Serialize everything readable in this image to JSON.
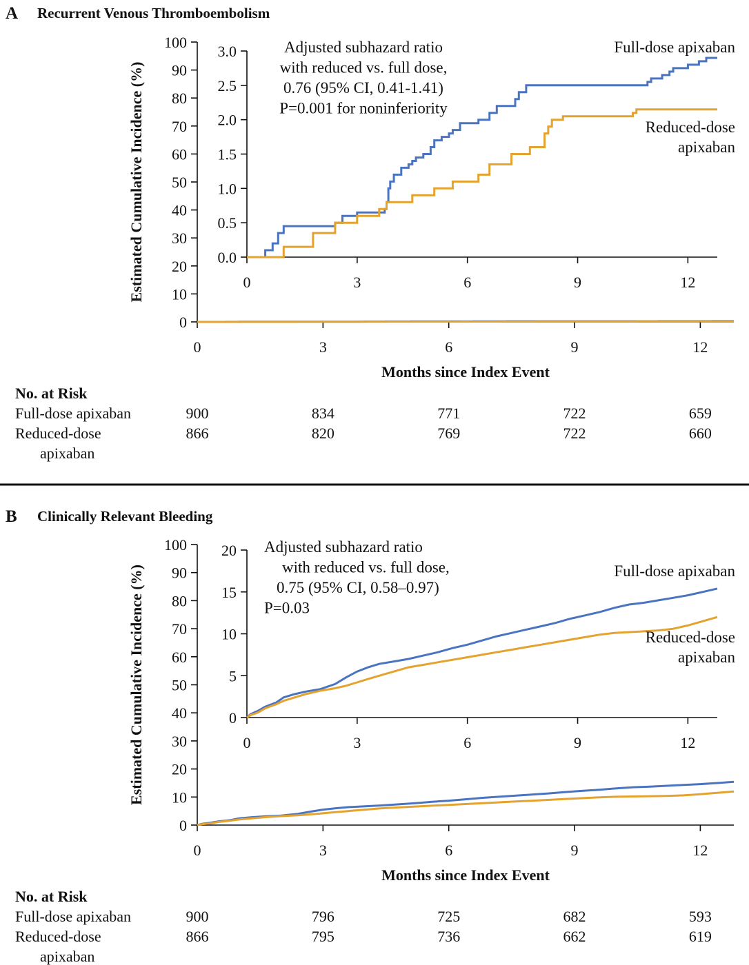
{
  "colors": {
    "full_dose": "#4a74c0",
    "reduced_dose": "#e4a22f"
  },
  "chart_data": [
    {
      "panel_letter": "A",
      "type": "line",
      "title": "Recurrent Venous Thromboembolism",
      "xlabel": "Months since Index Event",
      "ylabel": "Estimated Cumulative Incidence (%)",
      "xlim": [
        0,
        12.8
      ],
      "ylim": [
        0,
        100
      ],
      "xticks": [
        "0",
        "3",
        "6",
        "9",
        "12"
      ],
      "yticks": [
        "0",
        "10",
        "20",
        "30",
        "40",
        "50",
        "60",
        "70",
        "80",
        "90",
        "100"
      ],
      "series": [
        {
          "name": "Full-dose apixaban",
          "line": "step",
          "x": [
            0,
            0.5,
            0.7,
            0.85,
            1.0,
            2.4,
            2.6,
            3.0,
            3.75,
            3.8,
            3.85,
            3.9,
            4.0,
            4.2,
            4.4,
            4.5,
            4.6,
            4.8,
            5.0,
            5.1,
            5.3,
            5.5,
            5.6,
            5.8,
            6.3,
            6.6,
            6.8,
            7.3,
            7.4,
            7.6,
            10.9,
            11.0,
            11.3,
            11.5,
            11.6,
            12.0,
            12.3,
            12.5,
            12.8
          ],
          "y": [
            0,
            0.1,
            0.2,
            0.35,
            0.45,
            0.5,
            0.6,
            0.65,
            0.7,
            0.8,
            1.0,
            1.1,
            1.2,
            1.3,
            1.35,
            1.4,
            1.45,
            1.5,
            1.6,
            1.7,
            1.75,
            1.8,
            1.85,
            1.95,
            2.0,
            2.1,
            2.2,
            2.3,
            2.4,
            2.5,
            2.55,
            2.6,
            2.65,
            2.7,
            2.75,
            2.8,
            2.85,
            2.9,
            2.9
          ],
          "y_scale": 0.1
        },
        {
          "name": "Reduced-dose apixaban",
          "line": "step",
          "x": [
            0,
            1.0,
            1.8,
            2.4,
            3.0,
            3.6,
            3.8,
            4.5,
            5.1,
            5.6,
            6.3,
            6.6,
            7.2,
            7.7,
            8.1,
            8.2,
            8.3,
            8.6,
            10.5,
            10.6,
            12.8
          ],
          "y": [
            0,
            0.15,
            0.35,
            0.5,
            0.6,
            0.7,
            0.8,
            0.9,
            1.0,
            1.1,
            1.2,
            1.35,
            1.5,
            1.6,
            1.8,
            1.9,
            2.0,
            2.05,
            2.1,
            2.15,
            2.15
          ],
          "y_scale": 0.1
        }
      ],
      "inset": {
        "xlim": [
          0,
          12.8
        ],
        "ylim": [
          0,
          3.0
        ],
        "xticks": [
          "0",
          "3",
          "6",
          "9",
          "12"
        ],
        "yticks": [
          "0.0",
          "0.5",
          "1.0",
          "1.5",
          "2.0",
          "2.5",
          "3.0"
        ],
        "annotation": [
          "Adjusted subhazard ratio",
          "with reduced vs. full dose,",
          "0.76 (95% CI, 0.41-1.41)",
          "P=0.001 for noninferiority"
        ],
        "labels": {
          "full": [
            "Full-dose apixaban"
          ],
          "reduced": [
            "Reduced-dose",
            "apixaban"
          ]
        }
      },
      "risk_table": {
        "header": "No. at Risk",
        "rows": [
          {
            "label": [
              "Full-dose apixaban"
            ],
            "values": [
              "900",
              "834",
              "771",
              "722",
              "659"
            ]
          },
          {
            "label": [
              "Reduced-dose",
              "apixaban"
            ],
            "values": [
              "866",
              "820",
              "769",
              "722",
              "660"
            ]
          }
        ]
      }
    },
    {
      "panel_letter": "B",
      "type": "line",
      "title": "Clinically Relevant Bleeding",
      "xlabel": "Months since Index Event",
      "ylabel": "Estimated Cumulative Incidence (%)",
      "xlim": [
        0,
        12.8
      ],
      "ylim": [
        0,
        100
      ],
      "xticks": [
        "0",
        "3",
        "6",
        "9",
        "12"
      ],
      "yticks": [
        "0",
        "10",
        "20",
        "30",
        "40",
        "50",
        "60",
        "70",
        "80",
        "90",
        "100"
      ],
      "series": [
        {
          "name": "Full-dose apixaban",
          "line": "smooth",
          "x": [
            0,
            0.1,
            0.3,
            0.5,
            0.8,
            1.0,
            1.3,
            1.6,
            2.0,
            2.4,
            2.7,
            3.0,
            3.3,
            3.6,
            4.0,
            4.4,
            4.8,
            5.2,
            5.6,
            6.0,
            6.4,
            6.8,
            7.2,
            7.6,
            8.0,
            8.4,
            8.8,
            9.2,
            9.6,
            10.0,
            10.4,
            10.8,
            11.2,
            11.6,
            12.0,
            12.4,
            12.8
          ],
          "y": [
            0,
            0.4,
            0.8,
            1.3,
            1.8,
            2.4,
            2.8,
            3.1,
            3.4,
            4.0,
            4.8,
            5.5,
            6.0,
            6.4,
            6.7,
            7.0,
            7.4,
            7.8,
            8.3,
            8.7,
            9.2,
            9.7,
            10.1,
            10.5,
            10.9,
            11.3,
            11.8,
            12.2,
            12.6,
            13.1,
            13.5,
            13.7,
            14.0,
            14.3,
            14.6,
            15.0,
            15.4
          ]
        },
        {
          "name": "Reduced-dose apixaban",
          "line": "smooth",
          "x": [
            0,
            0.1,
            0.3,
            0.5,
            0.8,
            1.0,
            1.3,
            1.6,
            2.0,
            2.4,
            2.7,
            3.0,
            3.3,
            3.6,
            4.0,
            4.4,
            4.8,
            5.2,
            5.6,
            6.0,
            6.4,
            6.8,
            7.2,
            7.6,
            8.0,
            8.4,
            8.8,
            9.2,
            9.6,
            10.0,
            10.4,
            10.8,
            11.2,
            11.6,
            12.0,
            12.4,
            12.8
          ],
          "y": [
            0,
            0.3,
            0.6,
            1.1,
            1.6,
            2.0,
            2.4,
            2.8,
            3.2,
            3.5,
            3.8,
            4.2,
            4.6,
            5.0,
            5.5,
            6.0,
            6.3,
            6.6,
            6.9,
            7.2,
            7.5,
            7.8,
            8.1,
            8.4,
            8.7,
            9.0,
            9.3,
            9.6,
            9.9,
            10.1,
            10.2,
            10.3,
            10.4,
            10.6,
            11.0,
            11.5,
            12.0
          ]
        }
      ],
      "inset": {
        "xlim": [
          0,
          12.8
        ],
        "ylim": [
          0,
          20
        ],
        "xticks": [
          "0",
          "3",
          "6",
          "9",
          "12"
        ],
        "yticks": [
          "0",
          "5",
          "10",
          "15",
          "20"
        ],
        "annotation": [
          "Adjusted subhazard ratio",
          "with reduced vs. full dose,",
          "0.75 (95% CI, 0.58–0.97)",
          "P=0.03"
        ],
        "labels": {
          "full": [
            "Full-dose apixaban"
          ],
          "reduced": [
            "Reduced-dose",
            "apixaban"
          ]
        }
      },
      "risk_table": {
        "header": "No. at Risk",
        "rows": [
          {
            "label": [
              "Full-dose apixaban"
            ],
            "values": [
              "900",
              "796",
              "725",
              "682",
              "593"
            ]
          },
          {
            "label": [
              "Reduced-dose",
              "apixaban"
            ],
            "values": [
              "866",
              "795",
              "736",
              "662",
              "619"
            ]
          }
        ]
      }
    }
  ]
}
